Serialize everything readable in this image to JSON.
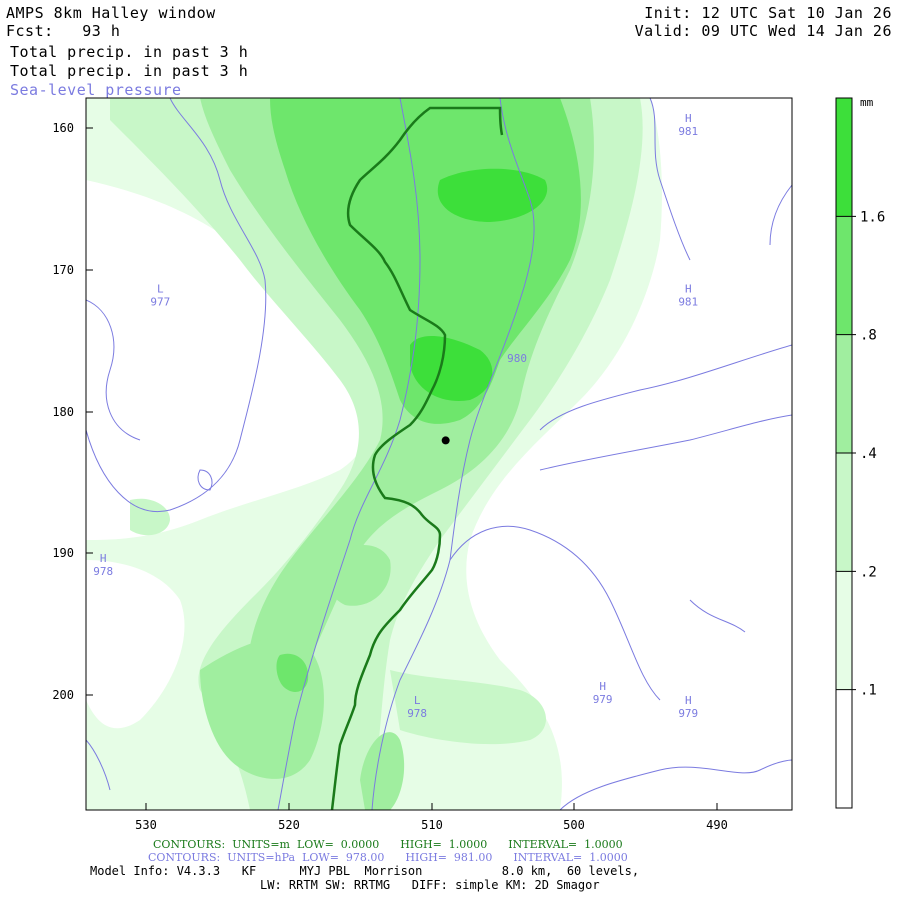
{
  "header": {
    "title": "AMPS 8km Halley window",
    "fcst": "Fcst:   93 h",
    "init": "Init: 12 UTC Sat 10 Jan 26",
    "valid": "Valid: 09 UTC Wed 14 Jan 26",
    "field1": "Total precip. in past 3 h",
    "field2": "Total precip. in past 3 h",
    "field3": "Sea-level pressure"
  },
  "colorbar": {
    "unit": "mm",
    "levels": [
      ".1",
      ".2",
      ".4",
      ".8",
      "1.6"
    ],
    "colors": [
      "#ffffff",
      "#e6fde6",
      "#c8f7c8",
      "#a0ee9f",
      "#6ee66c",
      "#3ddf3a"
    ]
  },
  "chart_data": {
    "type": "map",
    "x_ticks": [
      "530",
      "520",
      "510",
      "500",
      "490"
    ],
    "y_ticks": [
      "160",
      "170",
      "180",
      "190",
      "200"
    ],
    "pressure_labels": [
      {
        "type": "H",
        "value": "981",
        "x": 492,
        "y": 160
      },
      {
        "type": "H",
        "value": "981",
        "x": 492,
        "y": 172
      },
      {
        "type": "L",
        "value": "977",
        "x": 529,
        "y": 172
      },
      {
        "type": "H",
        "value": "978",
        "x": 533,
        "y": 191
      },
      {
        "type": "L",
        "value": "978",
        "x": 511,
        "y": 201
      },
      {
        "type": "H",
        "value": "979",
        "x": 498,
        "y": 200
      },
      {
        "type": "H",
        "value": "979",
        "x": 492,
        "y": 201
      },
      {
        "type": "",
        "value": "980",
        "x": 504,
        "y": 176
      }
    ],
    "station_marker": {
      "x": 509,
      "y": 182
    }
  },
  "footer": {
    "green_line": "CONTOURS:  UNITS=m  LOW=  0.0000      HIGH=  1.0000      INTERVAL=  1.0000",
    "blue_line": "CONTOURS:  UNITS=hPa  LOW=  978.00      HIGH=  981.00      INTERVAL=  1.0000",
    "info1": "Model Info: V4.3.3   KF      MYJ PBL  Morrison           8.0 km,  60 levels,",
    "info2": "LW: RRTM SW: RRTMG   DIFF: simple KM: 2D Smagor"
  }
}
